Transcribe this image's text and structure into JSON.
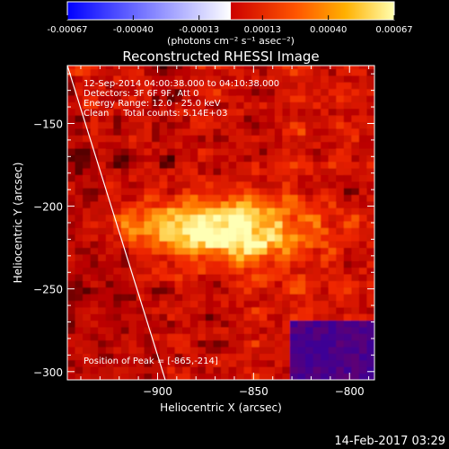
{
  "chart_data": {
    "type": "heatmap",
    "title": "Reconstructed RHESSI Image",
    "xlabel": "Heliocentric X (arcsec)",
    "ylabel": "Heliocentric Y (arcsec)",
    "xlim": [
      -947,
      -787
    ],
    "ylim": [
      -305,
      -115
    ],
    "x_ticks": [
      -900,
      -850,
      -800
    ],
    "y_ticks": [
      -150,
      -200,
      -250,
      -300
    ],
    "colorbar": {
      "ticks": [
        "-0.00067",
        "-0.00040",
        "-0.00013",
        "0.00013",
        "0.00040",
        "0.00067"
      ],
      "range": [
        -0.00067,
        0.00067
      ],
      "unit_label": "(photons cm⁻² s⁻¹ asec⁻²)"
    },
    "info_lines": [
      "12-Sep-2014 04:00:38.000 to 04:10:38.000",
      "Detectors: 3F 6F 9F, Att 0",
      "Energy Range: 12.0 - 25.0 keV",
      "Clean     Total counts: 5.14E+03"
    ],
    "peak_text": "Position of Peak = [-865,-214]",
    "peak": [
      -865,
      -214
    ],
    "limb_line": [
      [
        -947,
        -115
      ],
      [
        -896,
        -305
      ]
    ]
  },
  "timestamp": "14-Feb-2017 03:29",
  "colors": {
    "background": "#000000",
    "axes": "#ffffff",
    "colormap": [
      "#0000ff",
      "#ffffff",
      "#ff0000",
      "#ffa000",
      "#ffff90"
    ]
  }
}
